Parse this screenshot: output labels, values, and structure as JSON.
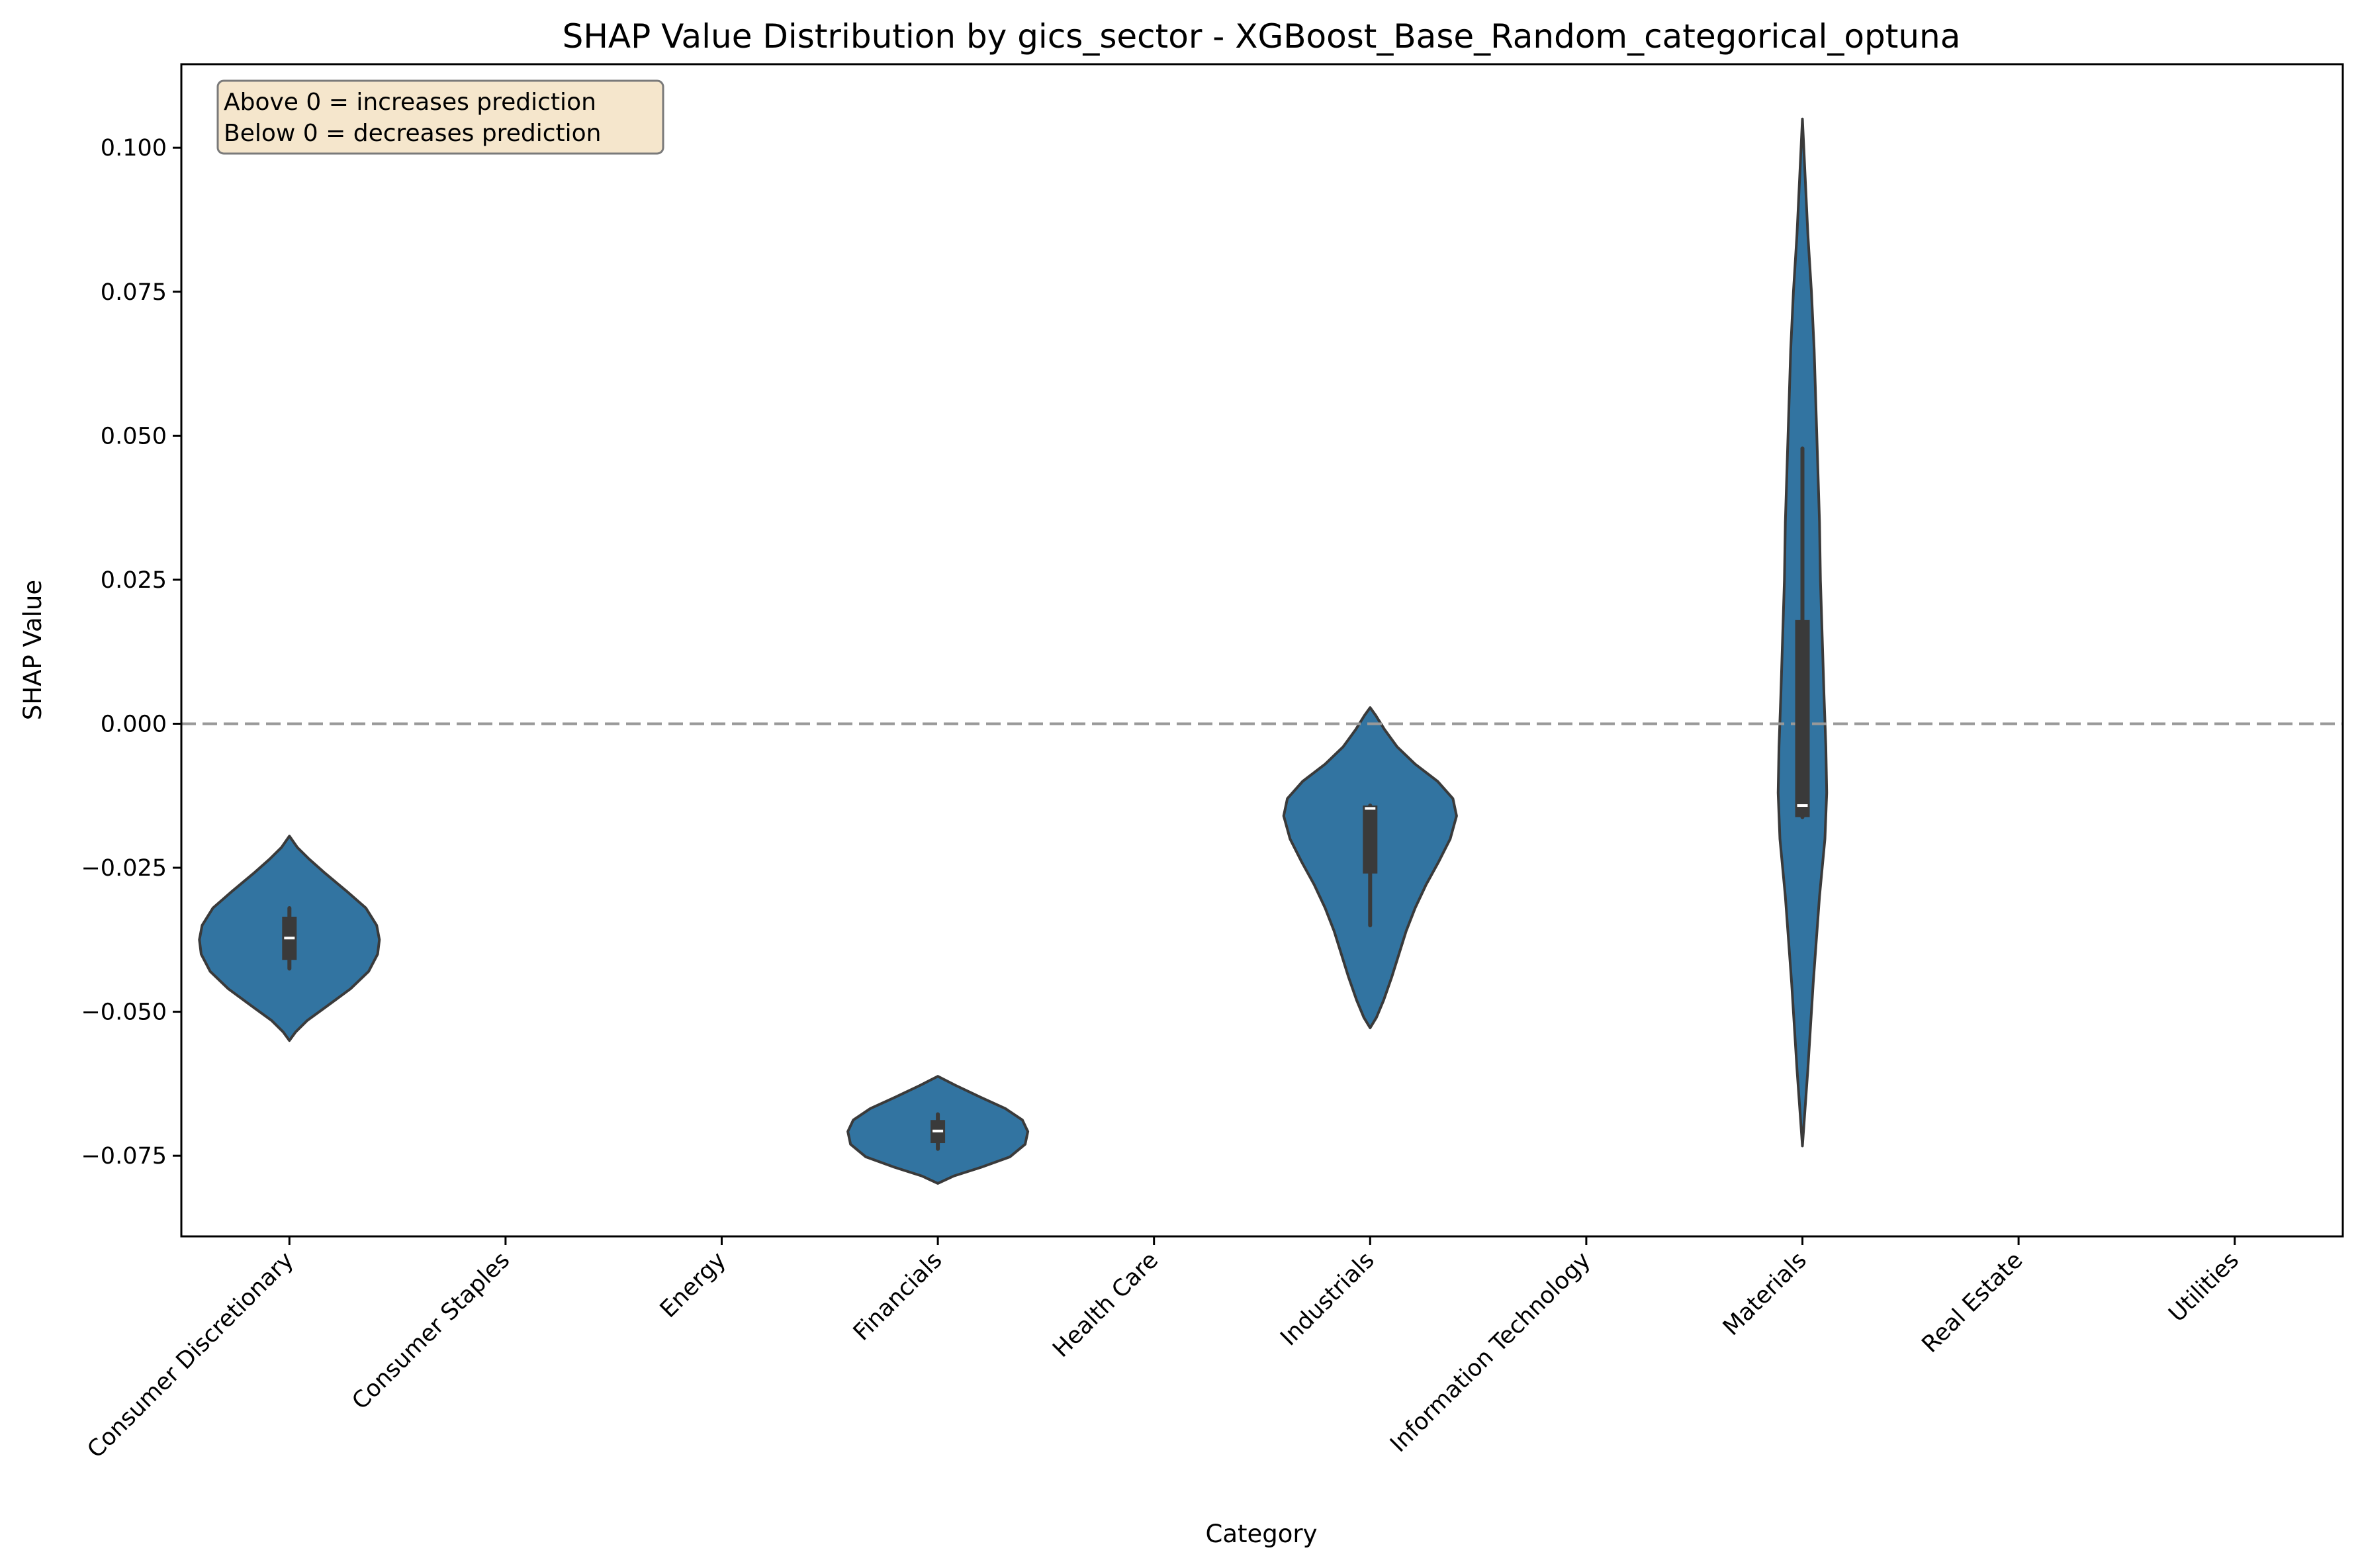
{
  "chart_data": {
    "type": "violin",
    "title": "SHAP Value Distribution by gics_sector - XGBoost_Base_Random_categorical_optuna",
    "xlabel": "Category",
    "ylabel": "SHAP Value",
    "ylim": [
      -0.089,
      0.1145
    ],
    "yticks": [
      -0.075,
      -0.05,
      -0.025,
      0.0,
      0.025,
      0.05,
      0.075,
      0.1
    ],
    "ytick_labels": [
      "−0.075",
      "−0.050",
      "−0.025",
      "0.000",
      "0.025",
      "0.050",
      "0.075",
      "0.100"
    ],
    "categories": [
      "Consumer Discretionary",
      "Consumer Staples",
      "Energy",
      "Financials",
      "Health Care",
      "Industrials",
      "Information Technology",
      "Materials",
      "Real Estate",
      "Utilities"
    ],
    "reference_line": {
      "y": 0.0,
      "style": "dashed",
      "color": "#999999"
    },
    "violin_color": "#3274a1",
    "edge_color": "#3a3a3a",
    "annotation": {
      "lines": [
        "Above 0 = increases prediction",
        "Below 0 = decreases prediction"
      ],
      "background": "#f5e6cc",
      "location": "top-left"
    },
    "series": [
      {
        "category": "Consumer Discretionary",
        "min": -0.055,
        "max": -0.0195,
        "q1": -0.041,
        "median": -0.0372,
        "q3": -0.0335,
        "whisker_low": -0.0425,
        "whisker_high": -0.032,
        "density": [
          [
            -0.055,
            0.0
          ],
          [
            -0.0535,
            0.07
          ],
          [
            -0.0515,
            0.2
          ],
          [
            -0.049,
            0.42
          ],
          [
            -0.046,
            0.68
          ],
          [
            -0.043,
            0.88
          ],
          [
            -0.04,
            0.98
          ],
          [
            -0.0375,
            1.0
          ],
          [
            -0.035,
            0.97
          ],
          [
            -0.032,
            0.85
          ],
          [
            -0.029,
            0.63
          ],
          [
            -0.026,
            0.4
          ],
          [
            -0.0235,
            0.22
          ],
          [
            -0.0215,
            0.09
          ],
          [
            -0.0195,
            0.0
          ]
        ]
      },
      {
        "category": "Financials",
        "min": -0.0798,
        "max": -0.0612,
        "q1": -0.0728,
        "median": -0.0707,
        "q3": -0.0688,
        "whisker_low": -0.0738,
        "whisker_high": -0.0678,
        "density": [
          [
            -0.0798,
            0.0
          ],
          [
            -0.0785,
            0.18
          ],
          [
            -0.077,
            0.48
          ],
          [
            -0.0752,
            0.8
          ],
          [
            -0.073,
            0.97
          ],
          [
            -0.0708,
            1.0
          ],
          [
            -0.0688,
            0.94
          ],
          [
            -0.0668,
            0.75
          ],
          [
            -0.0648,
            0.47
          ],
          [
            -0.0628,
            0.2
          ],
          [
            -0.0612,
            0.0
          ]
        ]
      },
      {
        "category": "Industrials",
        "min": -0.0528,
        "max": 0.0028,
        "q1": -0.026,
        "median": -0.0147,
        "q3": -0.0142,
        "whisker_low": -0.035,
        "whisker_high": -0.0142,
        "density": [
          [
            -0.0528,
            0.0
          ],
          [
            -0.051,
            0.07
          ],
          [
            -0.048,
            0.15
          ],
          [
            -0.044,
            0.24
          ],
          [
            -0.04,
            0.32
          ],
          [
            -0.036,
            0.4
          ],
          [
            -0.032,
            0.5
          ],
          [
            -0.028,
            0.62
          ],
          [
            -0.024,
            0.76
          ],
          [
            -0.02,
            0.89
          ],
          [
            -0.016,
            0.96
          ],
          [
            -0.013,
            0.92
          ],
          [
            -0.01,
            0.75
          ],
          [
            -0.007,
            0.5
          ],
          [
            -0.004,
            0.3
          ],
          [
            -0.001,
            0.16
          ],
          [
            0.0015,
            0.06
          ],
          [
            0.0028,
            0.0
          ]
        ]
      },
      {
        "category": "Materials",
        "min": -0.0733,
        "max": 0.105,
        "q1": -0.0162,
        "median": -0.0142,
        "q3": 0.018,
        "whisker_low": -0.0162,
        "whisker_high": 0.0478,
        "density": [
          [
            -0.0733,
            0.0
          ],
          [
            -0.06,
            0.06
          ],
          [
            -0.045,
            0.12
          ],
          [
            -0.03,
            0.19
          ],
          [
            -0.02,
            0.25
          ],
          [
            -0.012,
            0.27
          ],
          [
            -0.004,
            0.26
          ],
          [
            0.005,
            0.24
          ],
          [
            0.015,
            0.22
          ],
          [
            0.025,
            0.2
          ],
          [
            0.035,
            0.19
          ],
          [
            0.045,
            0.17
          ],
          [
            0.055,
            0.15
          ],
          [
            0.065,
            0.13
          ],
          [
            0.075,
            0.1
          ],
          [
            0.085,
            0.06
          ],
          [
            0.095,
            0.03
          ],
          [
            0.105,
            0.0
          ]
        ]
      }
    ]
  }
}
